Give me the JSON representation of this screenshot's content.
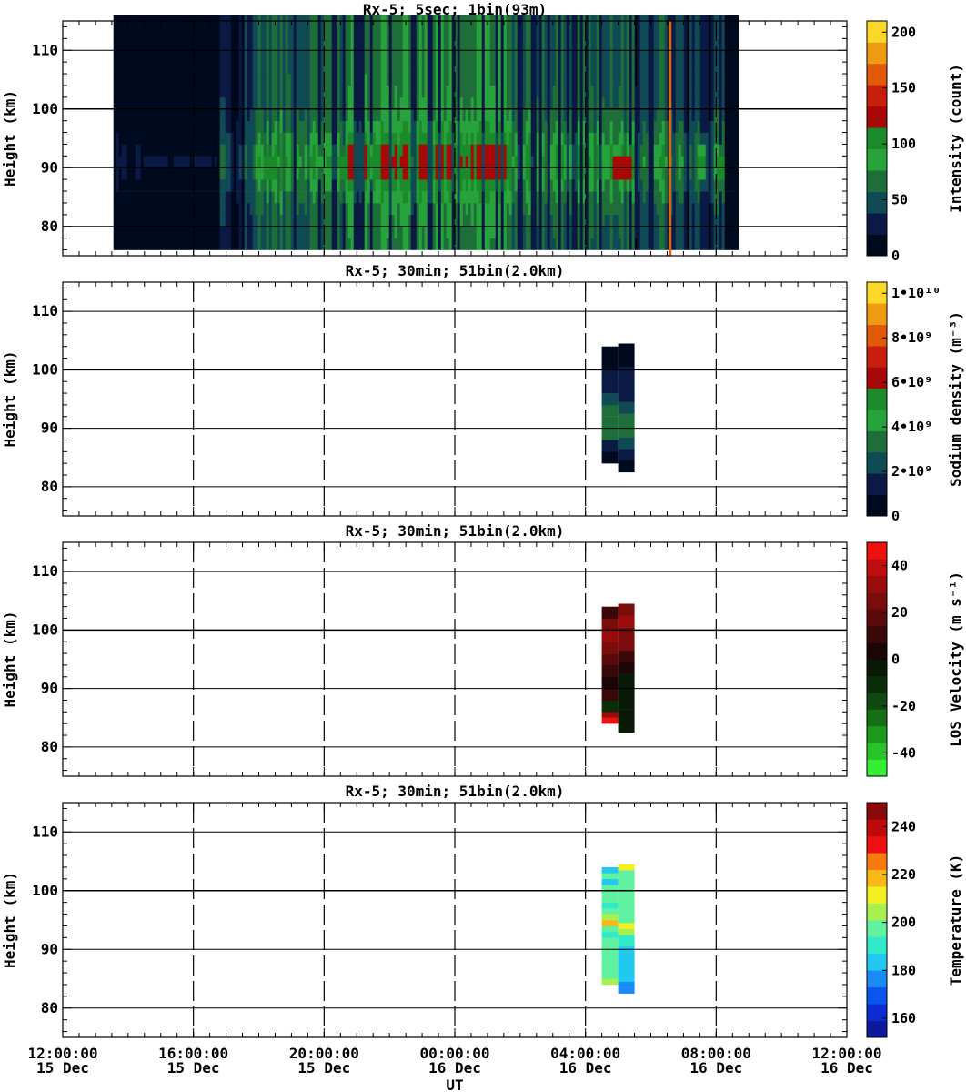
{
  "x_axis": {
    "label": "UT",
    "ticks": [
      {
        "t": "12:00:00",
        "d": "15 Dec",
        "h": 0
      },
      {
        "t": "16:00:00",
        "d": "15 Dec",
        "h": 4
      },
      {
        "t": "20:00:00",
        "d": "15 Dec",
        "h": 8
      },
      {
        "t": "00:00:00",
        "d": "16 Dec",
        "h": 12
      },
      {
        "t": "04:00:00",
        "d": "16 Dec",
        "h": 16
      },
      {
        "t": "08:00:00",
        "d": "16 Dec",
        "h": 20
      },
      {
        "t": "12:00:00",
        "d": "16 Dec",
        "h": 24
      }
    ],
    "range_hours": [
      0,
      24
    ]
  },
  "chart_data": [
    {
      "type": "heatmap",
      "title": "Rx-5;  5sec; 1bin(93m)",
      "ylabel": "Height (km)",
      "ylim": [
        75,
        115
      ],
      "yticks": [
        80,
        90,
        100,
        110
      ],
      "xlabel": "UT",
      "colorbar": {
        "label": "Intensity (count)",
        "range": [
          0,
          210
        ],
        "ticks": [
          {
            "v": 0,
            "t": "0"
          },
          {
            "v": 50,
            "t": "50"
          },
          {
            "v": 100,
            "t": "100"
          },
          {
            "v": 150,
            "t": "150"
          },
          {
            "v": 200,
            "t": "200"
          }
        ],
        "colors": [
          "#000a1e",
          "#0b1a45",
          "#0f4a55",
          "#1e6e3a",
          "#26a33a",
          "#1a8a2a",
          "#a80808",
          "#c81e0e",
          "#e05a0a",
          "#ee9a12",
          "#fbd828"
        ]
      },
      "data_span_hours": [
        1.55,
        20.75
      ],
      "strong_layers": [
        {
          "start": 6.1,
          "end": 6.5,
          "center_km": 90,
          "peak": 110
        },
        {
          "start": 7.8,
          "end": 8.0,
          "center_km": 91,
          "peak": 95
        },
        {
          "start": 8.4,
          "end": 8.7,
          "center_km": 90,
          "peak": 115
        },
        {
          "start": 9.2,
          "end": 9.5,
          "center_km": 91,
          "peak": 100
        },
        {
          "start": 16.8,
          "end": 17.4,
          "center_km": 90,
          "peak": 125
        },
        {
          "start": 19.4,
          "end": 19.6,
          "center_km": 91,
          "peak": 110
        },
        {
          "start": 20.0,
          "end": 20.2,
          "center_km": 90,
          "peak": 120
        }
      ]
    },
    {
      "type": "heatmap",
      "title": "Rx-5; 30min; 51bin(2.0km)",
      "ylabel": "Height (km)",
      "ylim": [
        75,
        115
      ],
      "yticks": [
        80,
        90,
        100,
        110
      ],
      "colorbar": {
        "label": "Sodium density (m⁻³)",
        "range": [
          0,
          10500000000.0
        ],
        "ticks": [
          {
            "v": 0,
            "t": "0"
          },
          {
            "v": 2000000000.0,
            "t": "2•10⁹"
          },
          {
            "v": 4000000000.0,
            "t": "4•10⁹"
          },
          {
            "v": 6000000000.0,
            "t": "6•10⁹"
          },
          {
            "v": 8000000000.0,
            "t": "8•10⁹"
          },
          {
            "v": 10000000000.0,
            "t": "1•10¹⁰"
          }
        ],
        "colors": [
          "#000a1e",
          "#0b1a45",
          "#0f4a55",
          "#1e6e3a",
          "#26a33a",
          "#1a8a2a",
          "#a80808",
          "#c81e0e",
          "#e05a0a",
          "#ee9a12",
          "#fbd828"
        ]
      },
      "columns": [
        {
          "x0": 16.5,
          "x1": 17.0,
          "cells": [
            {
              "y0": 84,
              "y1": 86,
              "v": 200000000.0
            },
            {
              "y0": 86,
              "y1": 88,
              "v": 1500000000.0
            },
            {
              "y0": 88,
              "y1": 90,
              "v": 3200000000.0
            },
            {
              "y0": 90,
              "y1": 92,
              "v": 3400000000.0
            },
            {
              "y0": 92,
              "y1": 94,
              "v": 3200000000.0
            },
            {
              "y0": 94,
              "y1": 96,
              "v": 2200000000.0
            },
            {
              "y0": 96,
              "y1": 98,
              "v": 1200000000.0
            },
            {
              "y0": 98,
              "y1": 100,
              "v": 1000000000.0
            },
            {
              "y0": 100,
              "y1": 102,
              "v": 300000000.0
            },
            {
              "y0": 102,
              "y1": 104,
              "v": 200000000.0
            }
          ]
        },
        {
          "x0": 17.0,
          "x1": 17.5,
          "cells": [
            {
              "y0": 82.5,
              "y1": 84.5,
              "v": 200000000.0
            },
            {
              "y0": 84.5,
              "y1": 86.5,
              "v": 1000000000.0
            },
            {
              "y0": 86.5,
              "y1": 88.5,
              "v": 2200000000.0
            },
            {
              "y0": 88.5,
              "y1": 90.5,
              "v": 3300000000.0
            },
            {
              "y0": 90.5,
              "y1": 92.5,
              "v": 3400000000.0
            },
            {
              "y0": 92.5,
              "y1": 94.5,
              "v": 2200000000.0
            },
            {
              "y0": 94.5,
              "y1": 96.5,
              "v": 1500000000.0
            },
            {
              "y0": 96.5,
              "y1": 98.5,
              "v": 1000000000.0
            },
            {
              "y0": 98.5,
              "y1": 100.5,
              "v": 1000000000.0
            },
            {
              "y0": 100.5,
              "y1": 102.5,
              "v": 300000000.0
            },
            {
              "y0": 102.5,
              "y1": 104.5,
              "v": 200000000.0
            }
          ]
        }
      ]
    },
    {
      "type": "heatmap",
      "title": "Rx-5; 30min; 51bin(2.0km)",
      "ylabel": "Height (km)",
      "ylim": [
        75,
        115
      ],
      "yticks": [
        80,
        90,
        100,
        110
      ],
      "colorbar": {
        "label": "LOS Velocity (m s⁻¹)",
        "range": [
          -50,
          50
        ],
        "ticks": [
          {
            "v": -40,
            "t": "-40"
          },
          {
            "v": -20,
            "t": "-20"
          },
          {
            "v": 0,
            "t": "0"
          },
          {
            "v": 20,
            "t": "20"
          },
          {
            "v": 40,
            "t": "40"
          }
        ],
        "colors": [
          "#33ee33",
          "#26c426",
          "#1c9a1c",
          "#156f15",
          "#0f4a12",
          "#0a2e0a",
          "#081a06",
          "#1a0606",
          "#3a0808",
          "#5a0a0a",
          "#7a0c0c",
          "#9a0c0c",
          "#c00c0c",
          "#ee1010"
        ]
      },
      "columns": [
        {
          "x0": 16.5,
          "x1": 17.0,
          "cells": [
            {
              "y0": 84,
              "y1": 85,
              "v": 48
            },
            {
              "y0": 85,
              "y1": 86,
              "v": 30
            },
            {
              "y0": 86,
              "y1": 88,
              "v": -8
            },
            {
              "y0": 88,
              "y1": 90,
              "v": 12
            },
            {
              "y0": 90,
              "y1": 92,
              "v": 5
            },
            {
              "y0": 92,
              "y1": 94,
              "v": 10
            },
            {
              "y0": 94,
              "y1": 96,
              "v": 18
            },
            {
              "y0": 96,
              "y1": 98,
              "v": 22
            },
            {
              "y0": 98,
              "y1": 100,
              "v": 30
            },
            {
              "y0": 100,
              "y1": 102,
              "v": 25
            },
            {
              "y0": 102,
              "y1": 104,
              "v": 8
            }
          ]
        },
        {
          "x0": 17.0,
          "x1": 17.5,
          "cells": [
            {
              "y0": 82.5,
              "y1": 84.5,
              "v": -6
            },
            {
              "y0": 84.5,
              "y1": 86.5,
              "v": -4
            },
            {
              "y0": 86.5,
              "y1": 88.5,
              "v": -2
            },
            {
              "y0": 88.5,
              "y1": 90.5,
              "v": -3
            },
            {
              "y0": 90.5,
              "y1": 92.5,
              "v": -5
            },
            {
              "y0": 92.5,
              "y1": 94.5,
              "v": 4
            },
            {
              "y0": 94.5,
              "y1": 96.5,
              "v": 14
            },
            {
              "y0": 96.5,
              "y1": 98.5,
              "v": 24
            },
            {
              "y0": 98.5,
              "y1": 100.5,
              "v": 28
            },
            {
              "y0": 100.5,
              "y1": 102.5,
              "v": 32
            },
            {
              "y0": 102.5,
              "y1": 104.5,
              "v": 28
            }
          ]
        }
      ]
    },
    {
      "type": "heatmap",
      "title": "Rx-5; 30min; 51bin(2.0km)",
      "ylabel": "Height (km)",
      "ylim": [
        75,
        115
      ],
      "yticks": [
        80,
        90,
        100,
        110
      ],
      "colorbar": {
        "label": "Temperature (K)",
        "range": [
          152,
          250
        ],
        "ticks": [
          {
            "v": 160,
            "t": "160"
          },
          {
            "v": 180,
            "t": "180"
          },
          {
            "v": 200,
            "t": "200"
          },
          {
            "v": 220,
            "t": "220"
          },
          {
            "v": 240,
            "t": "240"
          }
        ],
        "colors": [
          "#0a1a9a",
          "#0a2cd0",
          "#0a55f0",
          "#1a8af5",
          "#22c8f0",
          "#30eac8",
          "#60f2a0",
          "#a8f050",
          "#f2f020",
          "#f8b818",
          "#f87a10",
          "#ee1010",
          "#c00a0a",
          "#8a0808"
        ]
      },
      "columns": [
        {
          "x0": 16.5,
          "x1": 17.0,
          "cells": [
            {
              "y0": 84,
              "y1": 85,
              "v": 204
            },
            {
              "y0": 85,
              "y1": 86,
              "v": 198
            },
            {
              "y0": 86,
              "y1": 90,
              "v": 194
            },
            {
              "y0": 90,
              "y1": 92,
              "v": 196
            },
            {
              "y0": 92,
              "y1": 93,
              "v": 188
            },
            {
              "y0": 93,
              "y1": 94,
              "v": 200
            },
            {
              "y0": 94,
              "y1": 95,
              "v": 216
            },
            {
              "y0": 95,
              "y1": 96,
              "v": 206
            },
            {
              "y0": 96,
              "y1": 97,
              "v": 198
            },
            {
              "y0": 97,
              "y1": 98,
              "v": 192
            },
            {
              "y0": 98,
              "y1": 100,
              "v": 196
            },
            {
              "y0": 100,
              "y1": 101,
              "v": 194
            },
            {
              "y0": 101,
              "y1": 102,
              "v": 184
            },
            {
              "y0": 102,
              "y1": 103,
              "v": 194
            },
            {
              "y0": 103,
              "y1": 104,
              "v": 186
            }
          ]
        },
        {
          "x0": 17.0,
          "x1": 17.5,
          "cells": [
            {
              "y0": 82.5,
              "y1": 83.5,
              "v": 174
            },
            {
              "y0": 83.5,
              "y1": 84.5,
              "v": 178
            },
            {
              "y0": 84.5,
              "y1": 86.5,
              "v": 186
            },
            {
              "y0": 86.5,
              "y1": 88.5,
              "v": 186
            },
            {
              "y0": 88.5,
              "y1": 90.5,
              "v": 186
            },
            {
              "y0": 90.5,
              "y1": 92.5,
              "v": 192
            },
            {
              "y0": 92.5,
              "y1": 93.5,
              "v": 204
            },
            {
              "y0": 93.5,
              "y1": 94.5,
              "v": 208
            },
            {
              "y0": 94.5,
              "y1": 96.5,
              "v": 198
            },
            {
              "y0": 96.5,
              "y1": 98.5,
              "v": 200
            },
            {
              "y0": 98.5,
              "y1": 100.5,
              "v": 200
            },
            {
              "y0": 100.5,
              "y1": 101.5,
              "v": 194
            },
            {
              "y0": 101.5,
              "y1": 102.5,
              "v": 198
            },
            {
              "y0": 102.5,
              "y1": 103.5,
              "v": 196
            },
            {
              "y0": 103.5,
              "y1": 104.5,
              "v": 212
            }
          ]
        }
      ]
    }
  ]
}
